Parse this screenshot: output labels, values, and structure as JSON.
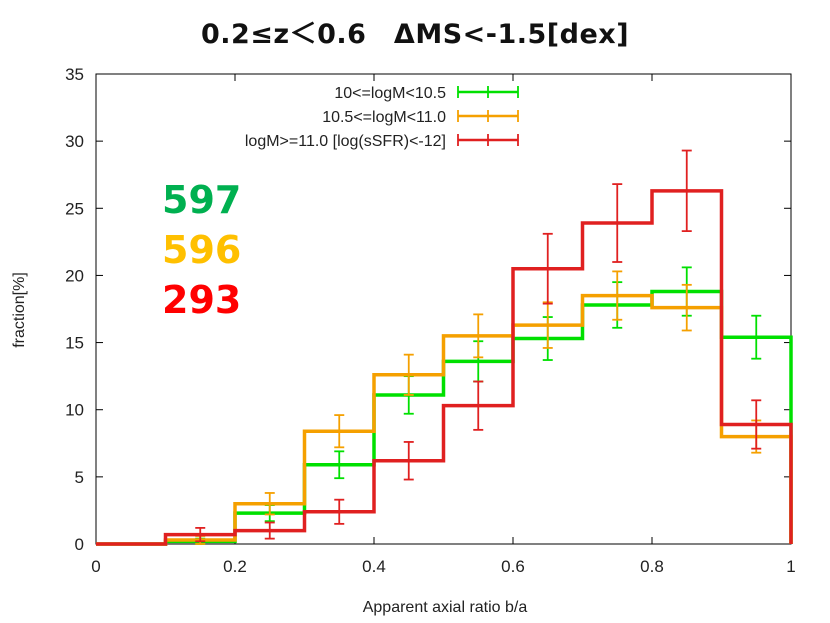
{
  "chart_data": {
    "type": "bar",
    "title": "0.2≤z＜0.6　ΔMS<-1.5[dex]",
    "xlabel": "Apparent axial ratio b/a",
    "ylabel": "fraction[%]",
    "xlim": [
      0,
      1
    ],
    "ylim": [
      0,
      35
    ],
    "xticks": [
      0,
      0.2,
      0.4,
      0.6,
      0.8,
      1
    ],
    "xtick_labels": [
      "0",
      "0.2",
      "0.4",
      "0.6",
      "0.8",
      "1"
    ],
    "yticks": [
      0,
      5,
      10,
      15,
      20,
      25,
      30,
      35
    ],
    "ytick_labels": [
      "0",
      "5",
      "10",
      "15",
      "20",
      "25",
      "30",
      "35"
    ],
    "legend_position": "top-right",
    "bin_edges": [
      0,
      0.1,
      0.2,
      0.3,
      0.4,
      0.5,
      0.6,
      0.7,
      0.8,
      0.9,
      1.0
    ],
    "bin_centers": [
      0.05,
      0.15,
      0.25,
      0.35,
      0.45,
      0.55,
      0.65,
      0.75,
      0.85,
      0.95
    ],
    "series": [
      {
        "name": "10<=logM<10.5",
        "color": "#00e000",
        "values": [
          0,
          0.2,
          2.3,
          5.9,
          11.1,
          13.6,
          15.3,
          17.8,
          18.8,
          15.4
        ],
        "errors": [
          0,
          0.2,
          0.6,
          1.0,
          1.4,
          1.5,
          1.6,
          1.7,
          1.8,
          1.6
        ]
      },
      {
        "name": "10.5<=logM<11.0",
        "color": "#f5a000",
        "values": [
          0,
          0.3,
          3.0,
          8.4,
          12.6,
          15.5,
          16.3,
          18.5,
          17.6,
          8.0
        ],
        "errors": [
          0,
          0.3,
          0.8,
          1.2,
          1.5,
          1.6,
          1.7,
          1.8,
          1.7,
          1.2
        ]
      },
      {
        "name": "logM>=11.0 [log(sSFR)<-12]",
        "color": "#e02020",
        "values": [
          0,
          0.7,
          1.0,
          2.4,
          6.2,
          10.3,
          20.5,
          23.9,
          26.3,
          8.9
        ],
        "errors": [
          0,
          0.5,
          0.6,
          0.9,
          1.4,
          1.8,
          2.6,
          2.9,
          3.0,
          1.8
        ]
      }
    ]
  },
  "counts": [
    {
      "text": "597",
      "color": "#00b050"
    },
    {
      "text": "596",
      "color": "#ffc000"
    },
    {
      "text": "293",
      "color": "#ff0000"
    }
  ]
}
